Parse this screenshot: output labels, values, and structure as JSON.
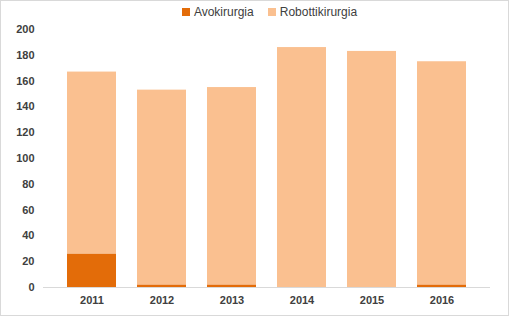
{
  "chart_data": {
    "type": "bar",
    "stacked": true,
    "categories": [
      "2011",
      "2012",
      "2013",
      "2014",
      "2015",
      "2016"
    ],
    "series": [
      {
        "name": "Avokirurgia",
        "color": "#e36c09",
        "values": [
          26,
          2,
          2,
          0,
          0,
          2
        ]
      },
      {
        "name": "Robottikirurgia",
        "color": "#fac090",
        "values": [
          141,
          151,
          153,
          186,
          183,
          173
        ]
      }
    ],
    "ylim": [
      0,
      200
    ],
    "yticks": [
      0,
      20,
      40,
      60,
      80,
      100,
      120,
      140,
      160,
      180,
      200
    ],
    "grid": false,
    "legend": "top"
  }
}
